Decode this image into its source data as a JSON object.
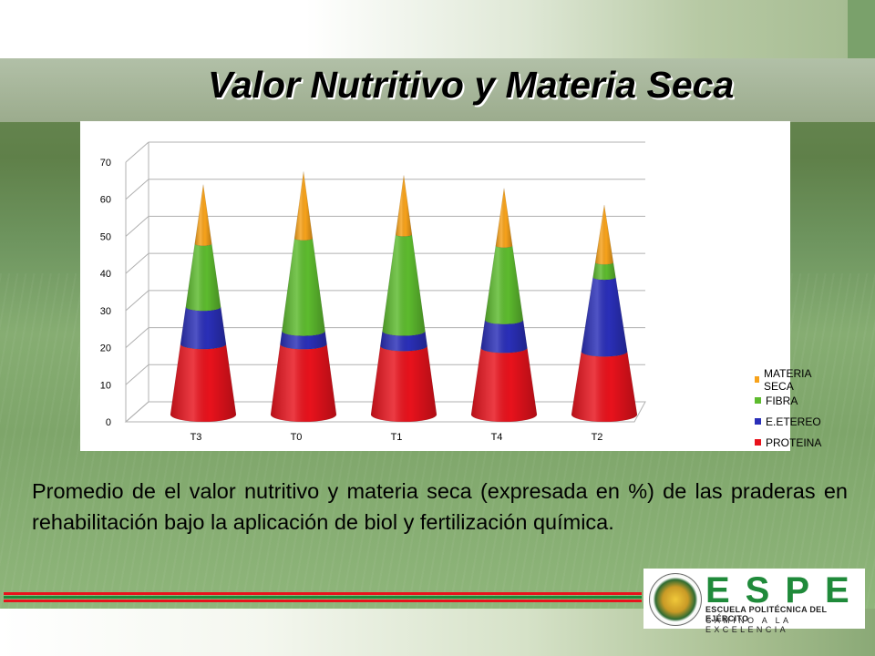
{
  "title": "Valor Nutritivo y Materia Seca",
  "caption": "Promedio de el valor nutritivo y materia seca (expresada en %) de las praderas en rehabilitación bajo la aplicación de biol y fertilización química.",
  "logo": {
    "letters": "ESPE",
    "line1": "ESCUELA POLITÉCNICA DEL EJÉRCITO",
    "line2": "CAMINO A LA EXCELENCIA"
  },
  "colors": {
    "proteina": "#e8121c",
    "etereo": "#2a2fb8",
    "fibra": "#5dbb2e",
    "materia_seca": "#f7a21b",
    "logo_green": "#1f8a3a"
  },
  "chart_data": {
    "type": "bar",
    "style": "3d-cone-stacked",
    "categories": [
      "T3",
      "T0",
      "T1",
      "T4",
      "T2"
    ],
    "series": [
      {
        "name": "PROTEINA",
        "values": [
          19,
          19,
          18.5,
          18,
          17
        ]
      },
      {
        "name": "E.ETEREO",
        "values": [
          10,
          3.5,
          4,
          7.5,
          20
        ]
      },
      {
        "name": "FIBRA",
        "values": [
          17,
          25,
          26,
          20,
          4
        ]
      },
      {
        "name": "MATERIA SECA",
        "values": [
          16,
          18,
          16,
          15.5,
          15.5
        ]
      }
    ],
    "yticks": [
      "0",
      "10",
      "20",
      "30",
      "40",
      "50",
      "60",
      "70"
    ],
    "ylim": [
      0,
      70
    ],
    "legend_position": "right",
    "grid": true
  }
}
